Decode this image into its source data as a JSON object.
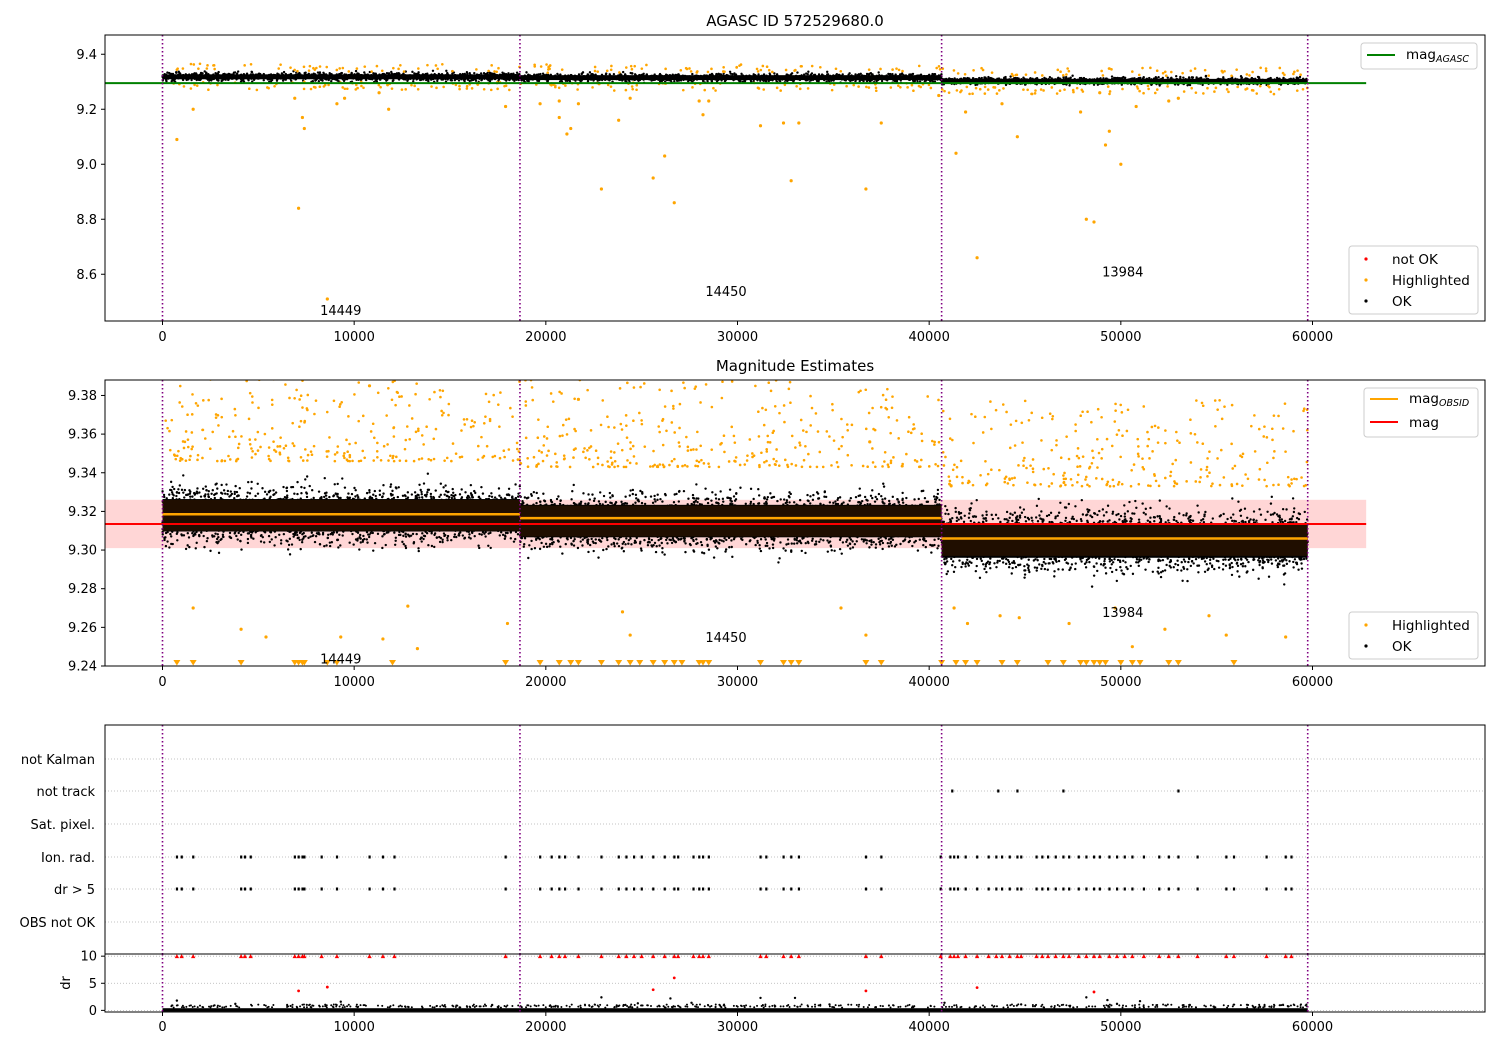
{
  "figure": {
    "title": "AGASC ID 572529680.0",
    "colors": {
      "ok": "#000000",
      "highlighted": "#ffa500",
      "not_ok": "#ff0000",
      "obs_boundary": "#800080",
      "mag_agasc": "#008000",
      "mag_obsid": "#ffa500",
      "mag": "#ff0000",
      "mag_band": "#ffd6d6",
      "grid": "#b0b0b0"
    }
  },
  "chart_data": [
    {
      "type": "scatter",
      "title": "AGASC ID 572529680.0",
      "xlim": [
        -3000,
        69000
      ],
      "ylim": [
        8.43,
        9.47
      ],
      "xticks": [
        "0",
        "10000",
        "20000",
        "30000",
        "40000",
        "50000",
        "60000"
      ],
      "xtick_values": [
        0,
        10000,
        20000,
        30000,
        40000,
        50000,
        60000
      ],
      "yticks": [
        "8.6",
        "8.8",
        "9.0",
        "9.2",
        "9.4"
      ],
      "ytick_values": [
        8.6,
        8.8,
        9.0,
        9.2,
        9.4
      ],
      "obs_boundaries": [
        0,
        18650,
        40650,
        59750
      ],
      "obsids": [
        {
          "label": "14449",
          "x": 9300,
          "y": 8.47
        },
        {
          "label": "14450",
          "x": 29400,
          "y": 8.54
        },
        {
          "label": "13984",
          "x": 50100,
          "y": 8.61
        }
      ],
      "mag_agasc": 9.295,
      "mag_agasc_span": [
        -3000,
        62800
      ],
      "ok_band": [
        {
          "x0": 0,
          "x1": 18650,
          "center": 9.318,
          "spread": 0.03
        },
        {
          "x0": 18650,
          "x1": 40650,
          "center": 9.315,
          "spread": 0.03
        },
        {
          "x0": 40650,
          "x1": 59750,
          "center": 9.303,
          "spread": 0.025
        }
      ],
      "highlighted_points": [
        [
          750,
          9.09
        ],
        [
          1600,
          9.2
        ],
        [
          6900,
          9.24
        ],
        [
          7100,
          8.84
        ],
        [
          7300,
          9.17
        ],
        [
          7400,
          9.13
        ],
        [
          8600,
          8.51
        ],
        [
          9100,
          9.22
        ],
        [
          9500,
          9.24
        ],
        [
          11300,
          9.26
        ],
        [
          11800,
          9.2
        ],
        [
          17900,
          9.21
        ],
        [
          19700,
          9.22
        ],
        [
          20700,
          9.23
        ],
        [
          20700,
          9.17
        ],
        [
          21100,
          9.11
        ],
        [
          21300,
          9.13
        ],
        [
          21700,
          9.22
        ],
        [
          22900,
          8.91
        ],
        [
          23800,
          9.16
        ],
        [
          24400,
          9.24
        ],
        [
          25600,
          8.95
        ],
        [
          26200,
          9.03
        ],
        [
          26700,
          8.86
        ],
        [
          28000,
          9.23
        ],
        [
          28200,
          9.18
        ],
        [
          28500,
          9.23
        ],
        [
          31200,
          9.14
        ],
        [
          32400,
          9.15
        ],
        [
          32800,
          8.94
        ],
        [
          33200,
          9.15
        ],
        [
          36700,
          8.91
        ],
        [
          37500,
          9.15
        ],
        [
          40500,
          9.25
        ],
        [
          41400,
          9.04
        ],
        [
          41900,
          9.19
        ],
        [
          42500,
          8.66
        ],
        [
          43800,
          9.22
        ],
        [
          44600,
          9.1
        ],
        [
          47900,
          9.19
        ],
        [
          48200,
          8.8
        ],
        [
          48600,
          8.79
        ],
        [
          48900,
          9.26
        ],
        [
          49200,
          9.07
        ],
        [
          49400,
          9.12
        ],
        [
          50000,
          9.0
        ],
        [
          50800,
          9.21
        ],
        [
          52500,
          9.23
        ],
        [
          53000,
          9.24
        ]
      ],
      "legend": {
        "line_entries": [
          "mag",
          "AGASC"
        ],
        "marker_entries": [
          "not OK",
          "Highlighted",
          "OK"
        ]
      }
    },
    {
      "type": "scatter",
      "title": "Magnitude Estimates",
      "xlim": [
        -3000,
        69000
      ],
      "ylim": [
        9.24,
        9.388
      ],
      "xticks": [
        "0",
        "10000",
        "20000",
        "30000",
        "40000",
        "50000",
        "60000"
      ],
      "xtick_values": [
        0,
        10000,
        20000,
        30000,
        40000,
        50000,
        60000
      ],
      "yticks": [
        "9.24",
        "9.26",
        "9.28",
        "9.30",
        "9.32",
        "9.34",
        "9.36",
        "9.38"
      ],
      "ytick_values": [
        9.24,
        9.26,
        9.28,
        9.3,
        9.32,
        9.34,
        9.36,
        9.38
      ],
      "obs_boundaries": [
        0,
        18650,
        40650,
        59750
      ],
      "obsids": [
        {
          "label": "14449",
          "x": 9300,
          "y": 9.244
        },
        {
          "label": "14450",
          "x": 29400,
          "y": 9.255
        },
        {
          "label": "13984",
          "x": 50100,
          "y": 9.268
        }
      ],
      "mag": 9.3135,
      "mag_band": [
        9.301,
        9.326
      ],
      "mag_span": [
        -3000,
        62800
      ],
      "mag_obsid": [
        {
          "x0": 0,
          "x1": 18650,
          "value": 9.3185
        },
        {
          "x0": 18650,
          "x1": 40650,
          "value": 9.3165
        },
        {
          "x0": 40650,
          "x1": 59750,
          "value": 9.306
        }
      ],
      "ok_band": [
        {
          "x0": 0,
          "x1": 18650,
          "center": 9.318,
          "spread": 0.028
        },
        {
          "x0": 18650,
          "x1": 40650,
          "center": 9.315,
          "spread": 0.028
        },
        {
          "x0": 40650,
          "x1": 59750,
          "center": 9.305,
          "spread": 0.03
        }
      ],
      "highlighted_points": [
        [
          1600,
          9.27
        ],
        [
          4100,
          9.259
        ],
        [
          5400,
          9.255
        ],
        [
          9300,
          9.255
        ],
        [
          10800,
          9.385
        ],
        [
          11500,
          9.254
        ],
        [
          12800,
          9.271
        ],
        [
          13300,
          9.249
        ],
        [
          18000,
          9.262
        ],
        [
          21700,
          9.378
        ],
        [
          24000,
          9.268
        ],
        [
          24400,
          9.256
        ],
        [
          35400,
          9.27
        ],
        [
          36700,
          9.256
        ],
        [
          36900,
          9.356
        ],
        [
          41300,
          9.27
        ],
        [
          42000,
          9.262
        ],
        [
          43700,
          9.266
        ],
        [
          44700,
          9.265
        ],
        [
          47300,
          9.262
        ],
        [
          49700,
          9.27
        ],
        [
          50600,
          9.25
        ],
        [
          52300,
          9.259
        ],
        [
          54600,
          9.266
        ],
        [
          55500,
          9.256
        ],
        [
          58600,
          9.255
        ]
      ],
      "below_range_markers": [
        750,
        1600,
        4100,
        6900,
        7100,
        7300,
        7400,
        8600,
        9100,
        12000,
        17900,
        19700,
        20700,
        21300,
        21700,
        22900,
        23800,
        24400,
        24900,
        25600,
        26200,
        26700,
        27100,
        28000,
        28200,
        28500,
        31200,
        32400,
        32800,
        33200,
        36700,
        37500,
        40650,
        41400,
        41900,
        42500,
        43800,
        44600,
        46200,
        47000,
        47900,
        48200,
        48600,
        48900,
        49200,
        50000,
        50600,
        51000,
        52500,
        53000,
        55900
      ],
      "legend": {
        "line_entries": [
          "mag",
          "OBSID",
          "mag"
        ],
        "marker_entries": [
          "Highlighted",
          "OK"
        ]
      }
    },
    {
      "type": "scatter",
      "title": "",
      "xlim": [
        -3000,
        69000
      ],
      "categories": [
        "not Kalman",
        "not track",
        "Sat. pixel.",
        "Ion. rad.",
        "dr > 5",
        "OBS not OK"
      ],
      "obs_boundaries": [
        0,
        18650,
        40650,
        59750
      ],
      "flag_x": {
        "not track": [
          41200,
          43600,
          44600,
          47000,
          53000
        ],
        "Ion. rad.": [
          750,
          1000,
          1600,
          4100,
          4300,
          4600,
          6900,
          7100,
          7300,
          7400,
          8300,
          9100,
          10800,
          11500,
          12100,
          17900,
          19700,
          20300,
          20700,
          21000,
          21700,
          22900,
          23800,
          24200,
          24600,
          25000,
          25600,
          26200,
          26700,
          26900,
          27700,
          28000,
          28200,
          28500,
          31200,
          31500,
          32400,
          32800,
          33200,
          36700,
          37500,
          40600,
          41100,
          41300,
          41500,
          41900,
          42500,
          43100,
          43500,
          43800,
          44200,
          44600,
          44800,
          45600,
          45900,
          46200,
          46600,
          47000,
          47300,
          47800,
          48200,
          48600,
          48900,
          49400,
          49800,
          50200,
          50600,
          51200,
          52000,
          52500,
          53000,
          54000,
          55500,
          55900,
          57600,
          58600,
          58900
        ],
        "dr > 5": [
          750,
          1000,
          1600,
          4100,
          4300,
          4600,
          6900,
          7100,
          7300,
          7400,
          8300,
          9100,
          10800,
          11500,
          12100,
          17900,
          19700,
          20300,
          20700,
          21000,
          21700,
          22900,
          23800,
          24200,
          24600,
          25000,
          25600,
          26200,
          26700,
          26900,
          27700,
          28000,
          28200,
          28500,
          31200,
          31500,
          32400,
          32800,
          33200,
          36700,
          37500,
          40600,
          41100,
          41300,
          41500,
          41900,
          42500,
          43100,
          43500,
          43800,
          44200,
          44600,
          44800,
          45600,
          45900,
          46200,
          46600,
          47000,
          47300,
          47800,
          48200,
          48600,
          48900,
          49400,
          49800,
          50200,
          50600,
          51200,
          52000,
          52500,
          53000,
          54000,
          55500,
          55900,
          57600,
          58600,
          58900
        ]
      }
    },
    {
      "type": "scatter",
      "title": "",
      "ylabel": "dr",
      "xlim": [
        -3000,
        69000
      ],
      "ylim": [
        -0.3,
        10.4
      ],
      "yticks": [
        "0",
        "5",
        "10"
      ],
      "ytick_values": [
        0,
        5,
        10
      ],
      "xticks": [
        "0",
        "10000",
        "20000",
        "30000",
        "40000",
        "50000",
        "60000"
      ],
      "xtick_values": [
        0,
        10000,
        20000,
        30000,
        40000,
        50000,
        60000
      ],
      "obs_boundaries": [
        0,
        18650,
        40650,
        59750
      ],
      "clipped_value": 10,
      "clipped_x": [
        750,
        1000,
        1600,
        4100,
        4300,
        4600,
        6900,
        7100,
        7300,
        7400,
        8300,
        9100,
        10800,
        11500,
        12100,
        17900,
        19700,
        20300,
        20700,
        21000,
        21700,
        22900,
        23800,
        24200,
        24600,
        25000,
        25600,
        26200,
        26700,
        26900,
        27700,
        28000,
        28200,
        28500,
        31200,
        31500,
        32400,
        32800,
        33200,
        36700,
        37500,
        40600,
        41100,
        41300,
        41500,
        41900,
        42500,
        43100,
        43500,
        43800,
        44200,
        44600,
        44800,
        45600,
        45900,
        46200,
        46600,
        47000,
        47300,
        47800,
        48200,
        48600,
        48900,
        49400,
        49800,
        50200,
        50600,
        51200,
        52000,
        52500,
        53000,
        54000,
        55500,
        55900,
        57600,
        58600,
        58900
      ],
      "red_points": [
        [
          7100,
          3.6
        ],
        [
          8600,
          4.3
        ],
        [
          25600,
          3.8
        ],
        [
          26700,
          6.0
        ],
        [
          36700,
          3.6
        ],
        [
          42500,
          4.2
        ],
        [
          48600,
          3.4
        ]
      ],
      "black_outliers": [
        [
          750,
          1.8
        ],
        [
          3800,
          1.2
        ],
        [
          9300,
          1.6
        ],
        [
          17200,
          1.0
        ],
        [
          22900,
          2.4
        ],
        [
          24800,
          1.3
        ],
        [
          26500,
          2.2
        ],
        [
          27600,
          1.4
        ],
        [
          31200,
          2.3
        ],
        [
          33000,
          2.3
        ],
        [
          34800,
          1.1
        ],
        [
          40800,
          1.4
        ],
        [
          44800,
          1.1
        ],
        [
          48200,
          2.4
        ],
        [
          49300,
          1.9
        ],
        [
          49800,
          1.2
        ],
        [
          51000,
          1.7
        ],
        [
          53600,
          1.0
        ]
      ]
    }
  ]
}
